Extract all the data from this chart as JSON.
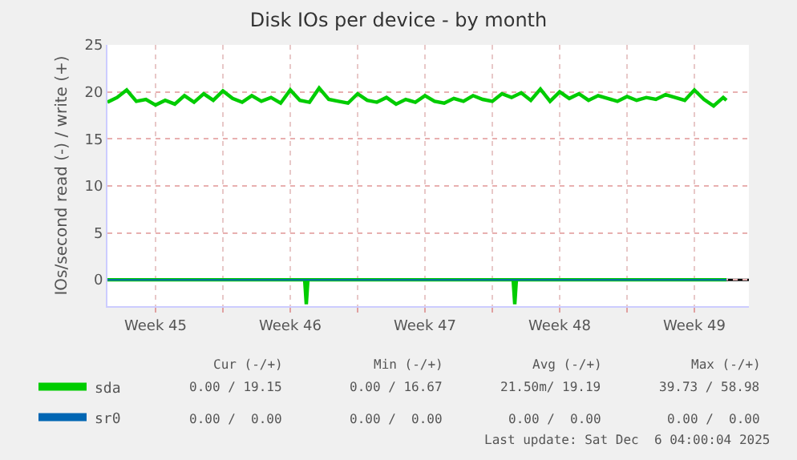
{
  "chart_data": {
    "type": "line",
    "title": "Disk IOs per device - by month",
    "ylabel": "IOs/second read (-) / write (+)",
    "xlim": [
      "2025-11-04T00:00",
      "2025-12-07T08:00"
    ],
    "xticks": [
      {
        "value": "2025-11-06T12:00",
        "label": "Week 45"
      },
      {
        "value": "2025-11-10T00:00",
        "label": null
      },
      {
        "value": "2025-11-13T12:00",
        "label": "Week 46"
      },
      {
        "value": "2025-11-17T00:00",
        "label": null
      },
      {
        "value": "2025-11-20T12:00",
        "label": "Week 47"
      },
      {
        "value": "2025-11-24T00:00",
        "label": null
      },
      {
        "value": "2025-11-27T12:00",
        "label": "Week 48"
      },
      {
        "value": "2025-12-01T00:00",
        "label": null
      },
      {
        "value": "2025-12-04T12:00",
        "label": "Week 49"
      }
    ],
    "ylim": [
      -2.8,
      25
    ],
    "yticks": [
      0,
      5,
      10,
      15,
      20,
      25
    ],
    "grid": true,
    "legend": "bottom left",
    "marker": "none",
    "line_style": "solid",
    "ref_lines": [
      {
        "axis": "y",
        "value": 0,
        "color": "#000000"
      }
    ],
    "series": [
      {
        "name": "sda",
        "color": "#00cc00",
        "x": [
          "2025-11-04T00:00",
          "2025-11-04T12:00",
          "2025-11-05T00:00",
          "2025-11-05T12:00",
          "2025-11-06T00:00",
          "2025-11-06T12:00",
          "2025-11-07T00:00",
          "2025-11-07T12:00",
          "2025-11-08T00:00",
          "2025-11-08T12:00",
          "2025-11-09T00:00",
          "2025-11-09T12:00",
          "2025-11-10T00:00",
          "2025-11-10T12:00",
          "2025-11-11T00:00",
          "2025-11-11T12:00",
          "2025-11-12T00:00",
          "2025-11-12T12:00",
          "2025-11-13T00:00",
          "2025-11-13T12:00",
          "2025-11-14T00:00",
          "2025-11-14T12:00",
          "2025-11-15T00:00",
          "2025-11-15T12:00",
          "2025-11-16T00:00",
          "2025-11-16T12:00",
          "2025-11-17T00:00",
          "2025-11-17T12:00",
          "2025-11-18T00:00",
          "2025-11-18T12:00",
          "2025-11-19T00:00",
          "2025-11-19T12:00",
          "2025-11-20T00:00",
          "2025-11-20T12:00",
          "2025-11-21T00:00",
          "2025-11-21T12:00",
          "2025-11-22T00:00",
          "2025-11-22T12:00",
          "2025-11-23T00:00",
          "2025-11-23T12:00",
          "2025-11-24T00:00",
          "2025-11-24T12:00",
          "2025-11-25T00:00",
          "2025-11-25T12:00",
          "2025-11-26T00:00",
          "2025-11-26T12:00",
          "2025-11-27T00:00",
          "2025-11-27T12:00",
          "2025-11-28T00:00",
          "2025-11-28T12:00",
          "2025-11-29T00:00",
          "2025-11-29T12:00",
          "2025-11-30T00:00",
          "2025-11-30T12:00",
          "2025-12-01T00:00",
          "2025-12-01T12:00",
          "2025-12-02T00:00",
          "2025-12-02T12:00",
          "2025-12-03T00:00",
          "2025-12-03T12:00",
          "2025-12-04T00:00",
          "2025-12-04T12:00",
          "2025-12-05T00:00",
          "2025-12-05T12:00",
          "2025-12-06T00:00",
          "2025-12-06T04:00"
        ],
        "values": [
          18.9,
          19.4,
          20.2,
          19.0,
          19.2,
          18.6,
          19.1,
          18.7,
          19.6,
          18.9,
          19.8,
          19.1,
          20.1,
          19.3,
          18.9,
          19.6,
          19.0,
          19.4,
          18.8,
          20.2,
          19.1,
          18.9,
          20.4,
          19.2,
          19.0,
          18.8,
          19.8,
          19.1,
          18.9,
          19.4,
          18.7,
          19.2,
          18.9,
          19.6,
          19.0,
          18.8,
          19.3,
          19.0,
          19.6,
          19.2,
          19.0,
          19.8,
          19.4,
          19.9,
          19.1,
          20.3,
          19.0,
          20.0,
          19.3,
          19.8,
          19.1,
          19.6,
          19.3,
          19.0,
          19.5,
          19.1,
          19.4,
          19.2,
          19.7,
          19.4,
          19.1,
          20.2,
          19.2,
          18.5,
          19.4,
          19.1
        ]
      },
      {
        "color": "#00cc00",
        "x": [
          "2025-11-04T00:00",
          "2025-11-14T06:00",
          "2025-11-14T08:00",
          "2025-11-14T10:00",
          "2025-11-25T02:00",
          "2025-11-25T04:00",
          "2025-11-25T06:00",
          "2025-12-06T04:00"
        ],
        "values": [
          0,
          0,
          -2.6,
          0,
          0,
          -2.6,
          0,
          0
        ]
      },
      {
        "name": "sr0",
        "color": "#0066b3",
        "x": [
          "2025-11-04T00:00",
          "2025-12-06T04:00"
        ],
        "values": [
          0,
          0
        ]
      }
    ],
    "annotations": [
      "Cur (-/+)",
      "Min (-/+)",
      "Avg (-/+)",
      "Max (-/+)",
      "0.00 / 19.15",
      "0.00 / 16.67",
      "21.50m/ 19.19",
      "39.73 / 58.98",
      "0.00 /  0.00",
      "0.00 /  0.00",
      "0.00 /  0.00",
      "0.00 /  0.00",
      "Last update: Sat Dec  6 04:00:04 2025"
    ]
  }
}
